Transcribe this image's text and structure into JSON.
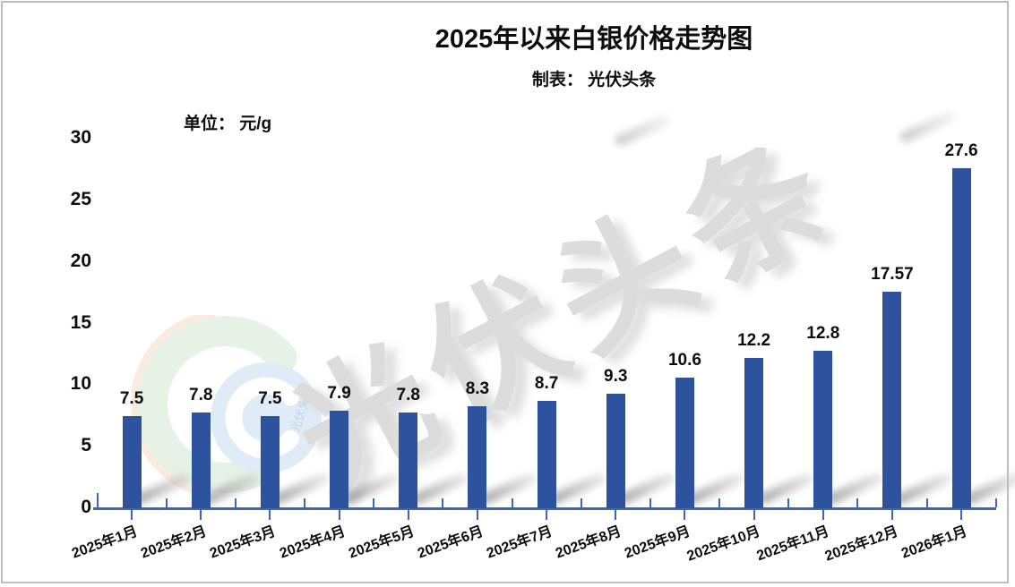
{
  "title": "2025年以来白银价格走势图",
  "subtitle": "制表： 光伏头条",
  "unit_label": "单位： 元/g",
  "watermark": {
    "text": "光伏头条",
    "logo_inner_text": "光伏头条"
  },
  "colors": {
    "bar": "#2d539f",
    "axis": "#3c67b5",
    "text": "#0d0d0d",
    "watermark_gray": "#dcdcdc",
    "logo_green": "#d3e8d0",
    "logo_peach": "#f8dcc4",
    "logo_blue": "#c6ddf1"
  },
  "chart_data": {
    "type": "bar",
    "title": "2025年以来白银价格走势图",
    "subtitle": "制表： 光伏头条",
    "ylabel": "单位： 元/g",
    "categories": [
      "2025年1月",
      "2025年2月",
      "2025年3月",
      "2025年4月",
      "2025年5月",
      "2025年6月",
      "2025年7月",
      "2025年8月",
      "2025年9月",
      "2025年10月",
      "2025年11月",
      "2025年12月",
      "2026年1月"
    ],
    "values": [
      7.5,
      7.8,
      7.5,
      7.9,
      7.8,
      8.3,
      8.7,
      9.3,
      10.6,
      12.2,
      12.8,
      17.57,
      27.6
    ],
    "data_labels": [
      "7.5",
      "7.8",
      "7.5",
      "7.9",
      "7.8",
      "8.3",
      "8.7",
      "9.3",
      "10.6",
      "12.2",
      "12.8",
      "17.57",
      "27.6"
    ],
    "ylim": [
      0,
      30
    ],
    "yticks": [
      0,
      5,
      10,
      15,
      20,
      25,
      30
    ],
    "grid": false,
    "legend": false,
    "x_label_rotation_deg": -20
  }
}
